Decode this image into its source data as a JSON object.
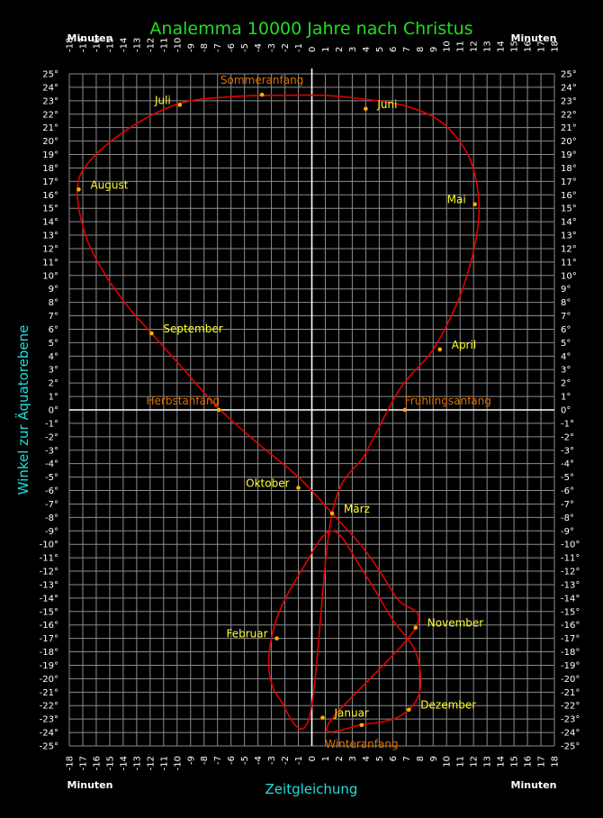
{
  "chart_data": {
    "type": "line",
    "title": "Analemma  10000 Jahre nach Christus",
    "xlabel": "Zeitgleichung",
    "ylabel": "Winkel zur Äquatorebene",
    "x_unit_label": "Minuten",
    "xlim": [
      -18,
      18
    ],
    "ylim": [
      -25,
      25
    ],
    "x_ticks": [
      -18,
      -17,
      -16,
      -15,
      -14,
      -13,
      -12,
      -11,
      -10,
      -9,
      -8,
      -7,
      -6,
      -5,
      -4,
      -3,
      -2,
      -1,
      0,
      1,
      2,
      3,
      4,
      5,
      6,
      7,
      8,
      9,
      10,
      11,
      12,
      13,
      14,
      15,
      16,
      17,
      18
    ],
    "y_ticks": [
      "25°",
      "24°",
      "23°",
      "22°",
      "21°",
      "20°",
      "19°",
      "18°",
      "17°",
      "16°",
      "15°",
      "14°",
      "13°",
      "12°",
      "11°",
      "10°",
      "9°",
      "8°",
      "7°",
      "6°",
      "5°",
      "4°",
      "3°",
      "2°",
      "1°",
      "0°",
      "-1°",
      "-2°",
      "-3°",
      "-4°",
      "-5°",
      "-6°",
      "-7°",
      "-8°",
      "-9°",
      "-10°",
      "-11°",
      "-12°",
      "-13°",
      "-14°",
      "-15°",
      "-16°",
      "-17°",
      "-18°",
      "-19°",
      "-20°",
      "-21°",
      "-22°",
      "-23°",
      "-24°",
      "-25°"
    ],
    "grid": true,
    "series": [
      {
        "x": [
          1.2,
          3.8,
          6.5,
          8.0,
          7.7,
          6.0,
          3.8,
          1.5,
          -0.8,
          -2.6,
          -3.2,
          -2.4,
          -0.2,
          1.5,
          4.0,
          6.5,
          9.0,
          10.8,
          11.8,
          12.3,
          12.4,
          12.1,
          11.3,
          9.5,
          7.0,
          4.0,
          1.0,
          -2.5,
          -6.0,
          -9.8,
          -13.5,
          -16.5,
          -17.4,
          -16.8,
          -15.3,
          -13.5,
          -11.9,
          -9.5,
          -7.0,
          -4.0,
          -1.0,
          1.5,
          4.0,
          6.3,
          7.7
        ],
        "y": [
          -23.4,
          -23.4,
          -22.8,
          -21.0,
          -18.0,
          -15.6,
          -12.0,
          -9.0,
          -12.0,
          -15.5,
          -19.0,
          -21.5,
          -22.9,
          -7.7,
          -3.2,
          1.5,
          4.5,
          8.0,
          11.0,
          13.5,
          15.3,
          17.5,
          19.5,
          21.5,
          22.6,
          23.1,
          23.4,
          23.4,
          23.3,
          22.8,
          21.0,
          18.5,
          16.4,
          13.0,
          10.0,
          7.5,
          5.7,
          3.0,
          0.2,
          -2.5,
          -5.0,
          -7.7,
          -10.5,
          -14.0,
          -16.2
        ]
      }
    ],
    "points": [
      {
        "label": "Januar",
        "x": 0.8,
        "y": -22.9,
        "kind": "month",
        "anchor": "right"
      },
      {
        "label": "Februar",
        "x": -2.6,
        "y": -17.0,
        "kind": "month",
        "anchor": "left"
      },
      {
        "label": "März",
        "x": 1.5,
        "y": -7.7,
        "kind": "month",
        "anchor": "right"
      },
      {
        "label": "April",
        "x": 9.5,
        "y": 4.5,
        "kind": "month",
        "anchor": "right"
      },
      {
        "label": "Mai",
        "x": 12.1,
        "y": 15.3,
        "kind": "month",
        "anchor": "left"
      },
      {
        "label": "Juni",
        "x": 4.0,
        "y": 22.4,
        "kind": "month",
        "anchor": "right"
      },
      {
        "label": "Juli",
        "x": -9.8,
        "y": 22.7,
        "kind": "month",
        "anchor": "left"
      },
      {
        "label": "August",
        "x": -17.3,
        "y": 16.4,
        "kind": "month",
        "anchor": "right"
      },
      {
        "label": "September",
        "x": -11.9,
        "y": 5.7,
        "kind": "month",
        "anchor": "right"
      },
      {
        "label": "Oktober",
        "x": -1.0,
        "y": -5.8,
        "kind": "month",
        "anchor": "left"
      },
      {
        "label": "November",
        "x": 7.7,
        "y": -16.2,
        "kind": "month",
        "anchor": "right"
      },
      {
        "label": "Dezember",
        "x": 7.2,
        "y": -22.3,
        "kind": "month",
        "anchor": "right"
      },
      {
        "label": "Sommeranfang",
        "x": -3.7,
        "y": 23.45,
        "kind": "season",
        "anchor": "above"
      },
      {
        "label": "Winteranfang",
        "x": 3.7,
        "y": -23.45,
        "kind": "season",
        "anchor": "below"
      },
      {
        "label": "Herbstanfang",
        "x": -6.9,
        "y": 0.0,
        "kind": "season",
        "anchor": "left"
      },
      {
        "label": "Frühlingsanfang",
        "x": 6.9,
        "y": 0.0,
        "kind": "season",
        "anchor": "right"
      }
    ]
  }
}
